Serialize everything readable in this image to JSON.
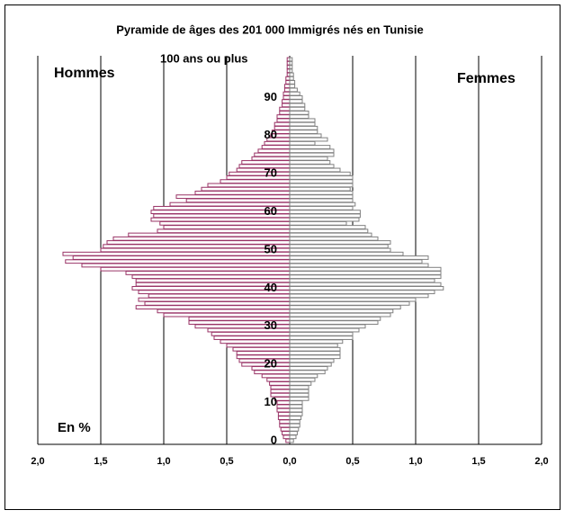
{
  "chart_data": {
    "type": "pyramid",
    "title": "Pyramide de âges des 201 000 Immigrés nés en Tunisie",
    "annotations": [
      "100 ans ou plus",
      "En %"
    ],
    "y": [
      0,
      1,
      2,
      3,
      4,
      5,
      6,
      7,
      8,
      9,
      10,
      11,
      12,
      13,
      14,
      15,
      16,
      17,
      18,
      19,
      20,
      21,
      22,
      23,
      24,
      25,
      26,
      27,
      28,
      29,
      30,
      31,
      32,
      33,
      34,
      35,
      36,
      37,
      38,
      39,
      40,
      41,
      42,
      43,
      44,
      45,
      46,
      47,
      48,
      49,
      50,
      51,
      52,
      53,
      54,
      55,
      56,
      57,
      58,
      59,
      60,
      61,
      62,
      63,
      64,
      65,
      66,
      67,
      68,
      69,
      70,
      71,
      72,
      73,
      74,
      75,
      76,
      77,
      78,
      79,
      80,
      81,
      82,
      83,
      84,
      85,
      86,
      87,
      88,
      89,
      90,
      91,
      92,
      93,
      94,
      95,
      96,
      97,
      98,
      99,
      100
    ],
    "series": [
      {
        "name": "Hommes",
        "color": "#993366",
        "values": [
          0.03,
          0.05,
          0.06,
          0.07,
          0.08,
          0.08,
          0.09,
          0.09,
          0.1,
          0.1,
          0.1,
          0.12,
          0.15,
          0.15,
          0.15,
          0.16,
          0.18,
          0.22,
          0.28,
          0.3,
          0.38,
          0.4,
          0.42,
          0.42,
          0.45,
          0.5,
          0.55,
          0.6,
          0.62,
          0.65,
          0.75,
          0.8,
          0.8,
          1.0,
          1.05,
          1.22,
          1.15,
          1.2,
          1.12,
          1.2,
          1.25,
          1.22,
          1.22,
          1.25,
          1.3,
          1.5,
          1.65,
          1.78,
          1.72,
          1.8,
          1.5,
          1.48,
          1.45,
          1.4,
          1.28,
          1.05,
          1.0,
          1.03,
          1.1,
          1.08,
          1.1,
          1.08,
          0.95,
          0.82,
          0.9,
          0.75,
          0.7,
          0.65,
          0.55,
          0.5,
          0.48,
          0.42,
          0.4,
          0.38,
          0.3,
          0.28,
          0.25,
          0.22,
          0.2,
          0.18,
          0.15,
          0.14,
          0.12,
          0.12,
          0.1,
          0.1,
          0.08,
          0.08,
          0.06,
          0.06,
          0.05,
          0.05,
          0.04,
          0.04,
          0.03,
          0.03,
          0.02,
          0.02,
          0.02,
          0.02,
          0.02
        ]
      },
      {
        "name": "Femmes",
        "color": "#808080",
        "values": [
          0.03,
          0.05,
          0.06,
          0.07,
          0.08,
          0.08,
          0.09,
          0.1,
          0.1,
          0.1,
          0.1,
          0.15,
          0.15,
          0.15,
          0.15,
          0.17,
          0.2,
          0.22,
          0.28,
          0.3,
          0.33,
          0.35,
          0.4,
          0.4,
          0.4,
          0.38,
          0.42,
          0.5,
          0.5,
          0.55,
          0.6,
          0.7,
          0.72,
          0.8,
          0.82,
          0.88,
          0.95,
          1.0,
          1.1,
          1.15,
          1.22,
          1.2,
          1.15,
          1.2,
          1.2,
          1.2,
          1.1,
          1.05,
          1.1,
          0.9,
          0.8,
          0.78,
          0.8,
          0.7,
          0.65,
          0.62,
          0.6,
          0.45,
          0.55,
          0.56,
          0.56,
          0.5,
          0.52,
          0.5,
          0.5,
          0.5,
          0.48,
          0.5,
          0.5,
          0.5,
          0.48,
          0.4,
          0.35,
          0.32,
          0.3,
          0.35,
          0.35,
          0.32,
          0.2,
          0.3,
          0.25,
          0.22,
          0.22,
          0.2,
          0.2,
          0.15,
          0.15,
          0.12,
          0.12,
          0.1,
          0.1,
          0.08,
          0.06,
          0.04,
          0.04,
          0.03,
          0.03,
          0.02,
          0.02,
          0.02,
          0.02
        ]
      }
    ],
    "xlim": [
      -2,
      2
    ],
    "xticks": [
      {
        "value": -2,
        "label": "2,0"
      },
      {
        "value": -1.5,
        "label": "1,5"
      },
      {
        "value": -1,
        "label": "1,0"
      },
      {
        "value": -0.5,
        "label": "0,5"
      },
      {
        "value": 0,
        "label": "0,0"
      },
      {
        "value": 0.5,
        "label": "0,5"
      },
      {
        "value": 1,
        "label": "1,0"
      },
      {
        "value": 1.5,
        "label": "1,5"
      },
      {
        "value": 2,
        "label": "2,0"
      }
    ],
    "ylim": [
      0,
      100
    ],
    "yticks": [
      0,
      10,
      20,
      30,
      40,
      50,
      60,
      70,
      80,
      90
    ],
    "grid": true
  }
}
